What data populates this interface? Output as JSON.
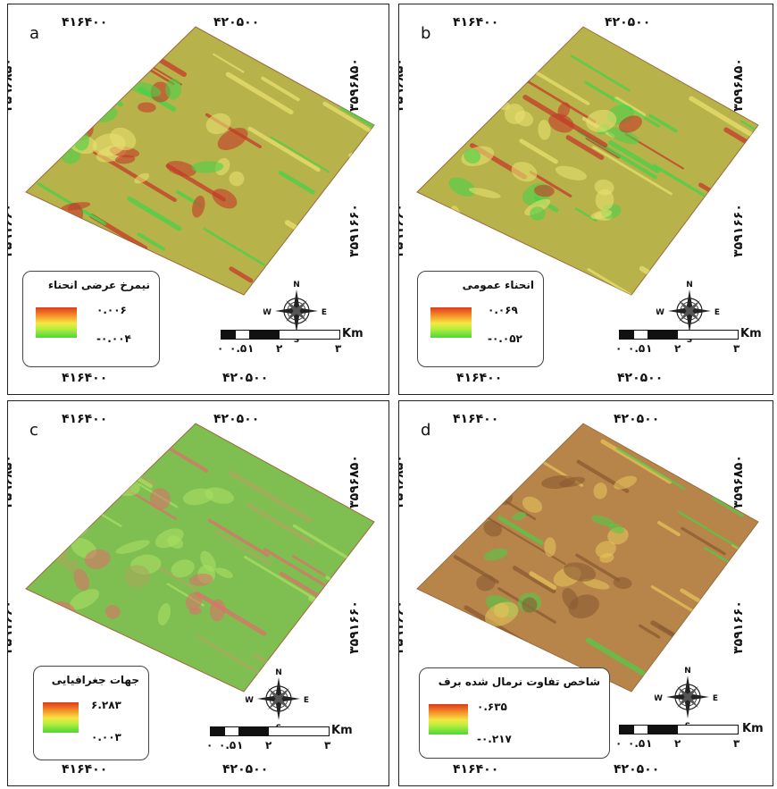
{
  "coords": {
    "top_left": "۴۱۶۴۰۰",
    "top_right": "۴۲۰۵۰۰",
    "bottom_left": "۴۱۶۴۰۰",
    "bottom_right": "۴۲۰۵۰۰",
    "upper_y": "۳۵۹۶۸۵۰",
    "lower_y": "۳۵۹۱۶۶۰"
  },
  "compass": {
    "n": "N",
    "s": "S",
    "e": "E",
    "w": "W"
  },
  "scale": {
    "unit": "Km",
    "ticks": [
      "۰",
      "۰.۵",
      "۱",
      "۲",
      "۳"
    ]
  },
  "panels": [
    {
      "label": "a",
      "legend_title": "نیمرخ عرضی انحناء",
      "max": "۰.۰۰۶",
      "min": "-۰.۰۰۴",
      "palette": "hill"
    },
    {
      "label": "b",
      "legend_title": "انحناء عمومی",
      "max": "۰.۰۶۹",
      "min": "-۰.۰۵۲",
      "palette": "hill"
    },
    {
      "label": "c",
      "legend_title": "جهات جغرافیایی",
      "max": "۶.۲۸۳",
      "min": "۰.۰۰۳",
      "palette": "aspect"
    },
    {
      "label": "d",
      "legend_title": "شاخص تفاوت نرمال شده برف",
      "max": "۰.۶۳۵",
      "min": "-۰.۲۱۷",
      "palette": "ndsi"
    }
  ]
}
